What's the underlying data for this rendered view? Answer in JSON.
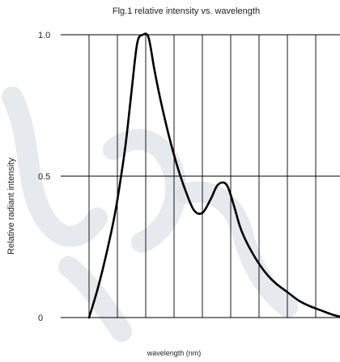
{
  "chart_data": {
    "type": "line",
    "title": "Flg.1 relative intensity vs. wavelength",
    "xlabel": "wavelength (nm)",
    "ylabel": "Relative radiant intensity",
    "x_tick_labels": [],
    "y_ticks": [
      {
        "value": 0,
        "label": "0"
      },
      {
        "value": 0.5,
        "label": "0.5"
      },
      {
        "value": 1.0,
        "label": "1.0"
      }
    ],
    "ylim": [
      0,
      1.0
    ],
    "xlim": [
      0,
      10
    ],
    "grid": true,
    "series": [
      {
        "x": [
          0.0,
          0.3,
          0.6,
          0.9,
          1.1,
          1.3,
          1.5,
          1.7,
          1.9,
          2.1,
          2.3,
          2.5,
          2.8,
          3.1,
          3.4,
          3.7,
          4.0,
          4.3,
          4.55,
          4.85,
          5.1,
          5.3,
          5.45,
          5.7,
          6.0,
          6.3,
          6.6,
          7.0,
          7.4,
          7.8,
          8.2,
          8.6,
          9.0
        ],
        "y": [
          0.0,
          0.1,
          0.22,
          0.36,
          0.48,
          0.62,
          0.8,
          0.97,
          1.0,
          0.99,
          0.88,
          0.78,
          0.65,
          0.54,
          0.45,
          0.38,
          0.37,
          0.42,
          0.47,
          0.47,
          0.4,
          0.33,
          0.29,
          0.24,
          0.19,
          0.15,
          0.12,
          0.09,
          0.06,
          0.04,
          0.025,
          0.01,
          0.0
        ]
      }
    ]
  },
  "colors": {
    "grid": "#000000",
    "curve": "#000000",
    "watermark": "#dde1e7"
  }
}
